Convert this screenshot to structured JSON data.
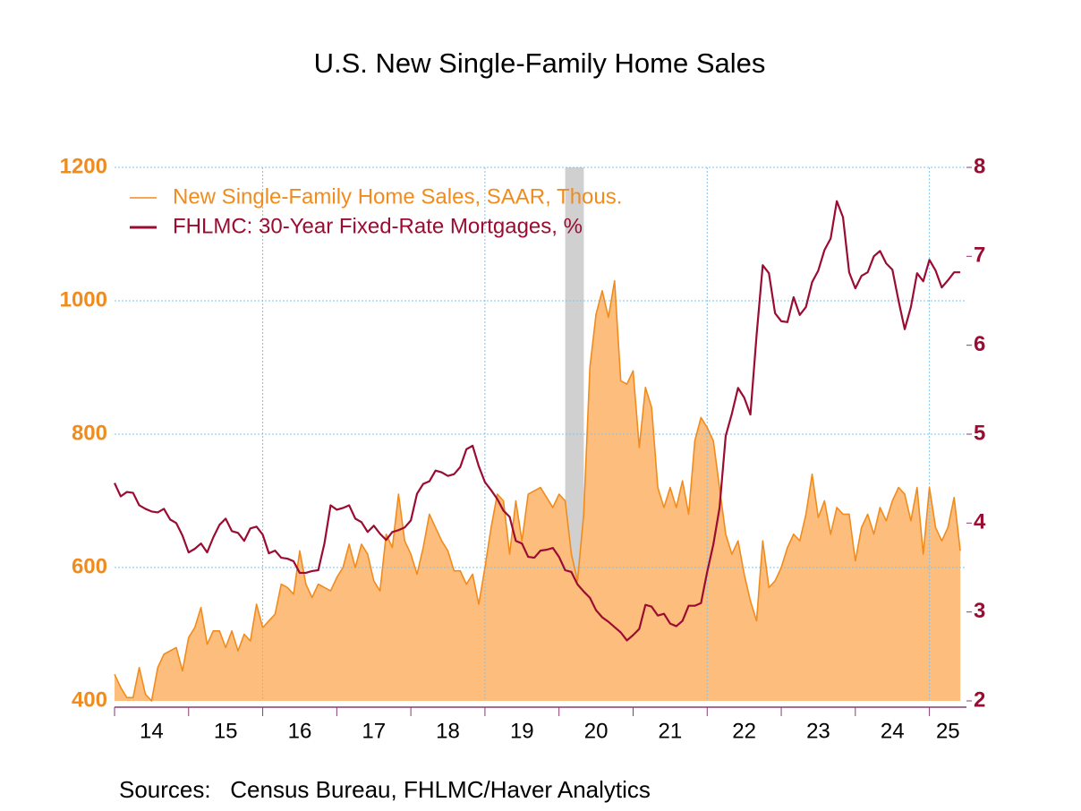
{
  "chart_data": {
    "type": "line",
    "title": "U.S. New Single-Family Home Sales",
    "source": "Sources:   Census Bureau, FHLMC/Haver Analytics",
    "x": [
      "2014-01",
      "2014-02",
      "2014-03",
      "2014-04",
      "2014-05",
      "2014-06",
      "2014-07",
      "2014-08",
      "2014-09",
      "2014-10",
      "2014-11",
      "2014-12",
      "2015-01",
      "2015-02",
      "2015-03",
      "2015-04",
      "2015-05",
      "2015-06",
      "2015-07",
      "2015-08",
      "2015-09",
      "2015-10",
      "2015-11",
      "2015-12",
      "2016-01",
      "2016-02",
      "2016-03",
      "2016-04",
      "2016-05",
      "2016-06",
      "2016-07",
      "2016-08",
      "2016-09",
      "2016-10",
      "2016-11",
      "2016-12",
      "2017-01",
      "2017-02",
      "2017-03",
      "2017-04",
      "2017-05",
      "2017-06",
      "2017-07",
      "2017-08",
      "2017-09",
      "2017-10",
      "2017-11",
      "2017-12",
      "2018-01",
      "2018-02",
      "2018-03",
      "2018-04",
      "2018-05",
      "2018-06",
      "2018-07",
      "2018-08",
      "2018-09",
      "2018-10",
      "2018-11",
      "2018-12",
      "2019-01",
      "2019-02",
      "2019-03",
      "2019-04",
      "2019-05",
      "2019-06",
      "2019-07",
      "2019-08",
      "2019-09",
      "2019-10",
      "2019-11",
      "2019-12",
      "2020-01",
      "2020-02",
      "2020-03",
      "2020-04",
      "2020-05",
      "2020-06",
      "2020-07",
      "2020-08",
      "2020-09",
      "2020-10",
      "2020-11",
      "2020-12",
      "2021-01",
      "2021-02",
      "2021-03",
      "2021-04",
      "2021-05",
      "2021-06",
      "2021-07",
      "2021-08",
      "2021-09",
      "2021-10",
      "2021-11",
      "2021-12",
      "2022-01",
      "2022-02",
      "2022-03",
      "2022-04",
      "2022-05",
      "2022-06",
      "2022-07",
      "2022-08",
      "2022-09",
      "2022-10",
      "2022-11",
      "2022-12",
      "2023-01",
      "2023-02",
      "2023-03",
      "2023-04",
      "2023-05",
      "2023-06",
      "2023-07",
      "2023-08",
      "2023-09",
      "2023-10",
      "2023-11",
      "2023-12",
      "2024-01",
      "2024-02",
      "2024-03",
      "2024-04",
      "2024-05",
      "2024-06",
      "2024-07",
      "2024-08",
      "2024-09",
      "2024-10",
      "2024-11",
      "2024-12",
      "2025-01",
      "2025-02",
      "2025-03",
      "2025-04",
      "2025-05",
      "2025-06"
    ],
    "series": [
      {
        "name": "New Single-Family Home Sales, SAAR, Thous.",
        "color": "#f08c1e",
        "fill": "#fdbd7d",
        "kind": "area",
        "values": [
          440,
          420,
          405,
          405,
          450,
          410,
          400,
          450,
          470,
          475,
          480,
          445,
          495,
          510,
          540,
          485,
          505,
          505,
          480,
          505,
          475,
          500,
          490,
          545,
          510,
          520,
          530,
          575,
          570,
          560,
          625,
          575,
          555,
          575,
          570,
          565,
          585,
          600,
          635,
          600,
          635,
          620,
          580,
          565,
          650,
          630,
          710,
          640,
          620,
          590,
          630,
          680,
          660,
          640,
          625,
          595,
          595,
          575,
          590,
          545,
          600,
          660,
          710,
          700,
          620,
          700,
          640,
          710,
          715,
          720,
          705,
          690,
          710,
          700,
          620,
          580,
          680,
          900,
          980,
          1015,
          975,
          1030,
          880,
          875,
          895,
          780,
          870,
          840,
          720,
          690,
          720,
          690,
          730,
          680,
          790,
          825,
          810,
          790,
          720,
          650,
          620,
          640,
          590,
          550,
          520,
          640,
          570,
          580,
          600,
          630,
          650,
          640,
          680,
          740,
          675,
          700,
          650,
          690,
          680,
          680,
          610,
          660,
          680,
          650,
          690,
          670,
          700,
          720,
          710,
          670,
          720,
          620,
          720,
          660,
          640,
          660,
          705,
          625
        ]
      },
      {
        "name": "FHLMC: 30-Year Fixed-Rate Mortgages, %",
        "color": "#9b0c32",
        "kind": "line",
        "axis": "y2",
        "values": [
          4.45,
          4.3,
          4.35,
          4.34,
          4.2,
          4.16,
          4.13,
          4.12,
          4.16,
          4.04,
          4.0,
          3.86,
          3.67,
          3.71,
          3.77,
          3.67,
          3.84,
          3.98,
          4.05,
          3.91,
          3.89,
          3.8,
          3.94,
          3.96,
          3.87,
          3.66,
          3.69,
          3.61,
          3.6,
          3.57,
          3.44,
          3.44,
          3.46,
          3.47,
          3.77,
          4.2,
          4.15,
          4.17,
          4.2,
          4.05,
          4.01,
          3.9,
          3.97,
          3.88,
          3.81,
          3.9,
          3.92,
          3.95,
          4.03,
          4.33,
          4.44,
          4.47,
          4.59,
          4.57,
          4.53,
          4.55,
          4.63,
          4.83,
          4.87,
          4.64,
          4.46,
          4.37,
          4.27,
          4.14,
          4.07,
          3.8,
          3.77,
          3.62,
          3.61,
          3.69,
          3.7,
          3.72,
          3.62,
          3.47,
          3.45,
          3.31,
          3.23,
          3.16,
          3.02,
          2.94,
          2.89,
          2.83,
          2.77,
          2.68,
          2.74,
          2.81,
          3.08,
          3.06,
          2.96,
          2.98,
          2.87,
          2.84,
          2.9,
          3.07,
          3.07,
          3.1,
          3.45,
          3.76,
          4.17,
          4.98,
          5.23,
          5.52,
          5.41,
          5.22,
          6.11,
          6.9,
          6.81,
          6.36,
          6.27,
          6.26,
          6.54,
          6.34,
          6.43,
          6.71,
          6.84,
          7.07,
          7.2,
          7.62,
          7.44,
          6.82,
          6.64,
          6.78,
          6.82,
          7.0,
          7.06,
          6.92,
          6.85,
          6.5,
          6.18,
          6.43,
          6.81,
          6.72,
          6.96,
          6.84,
          6.65,
          6.73,
          6.82,
          6.82
        ]
      }
    ],
    "recession": {
      "start": "2020-02",
      "end": "2020-04",
      "color": "#d0d0d0"
    },
    "xlim": [
      "2014-01",
      "2025-07"
    ],
    "xticks": [
      {
        "value": "2014-01",
        "label": "14"
      },
      {
        "value": "2015-01",
        "label": "15"
      },
      {
        "value": "2016-01",
        "label": "16"
      },
      {
        "value": "2017-01",
        "label": "17"
      },
      {
        "value": "2018-01",
        "label": "18"
      },
      {
        "value": "2019-01",
        "label": "19"
      },
      {
        "value": "2020-01",
        "label": "20"
      },
      {
        "value": "2021-01",
        "label": "21"
      },
      {
        "value": "2022-01",
        "label": "22"
      },
      {
        "value": "2023-01",
        "label": "23"
      },
      {
        "value": "2024-01",
        "label": "24"
      },
      {
        "value": "2025-01",
        "label": "25"
      }
    ],
    "ylim": [
      400,
      1200
    ],
    "yticks": [
      400,
      600,
      800,
      1000,
      1200
    ],
    "y2lim": [
      2,
      8
    ],
    "y2ticks": [
      2,
      3,
      4,
      5,
      6,
      7,
      8
    ],
    "grid": true,
    "legend": "top-left"
  }
}
